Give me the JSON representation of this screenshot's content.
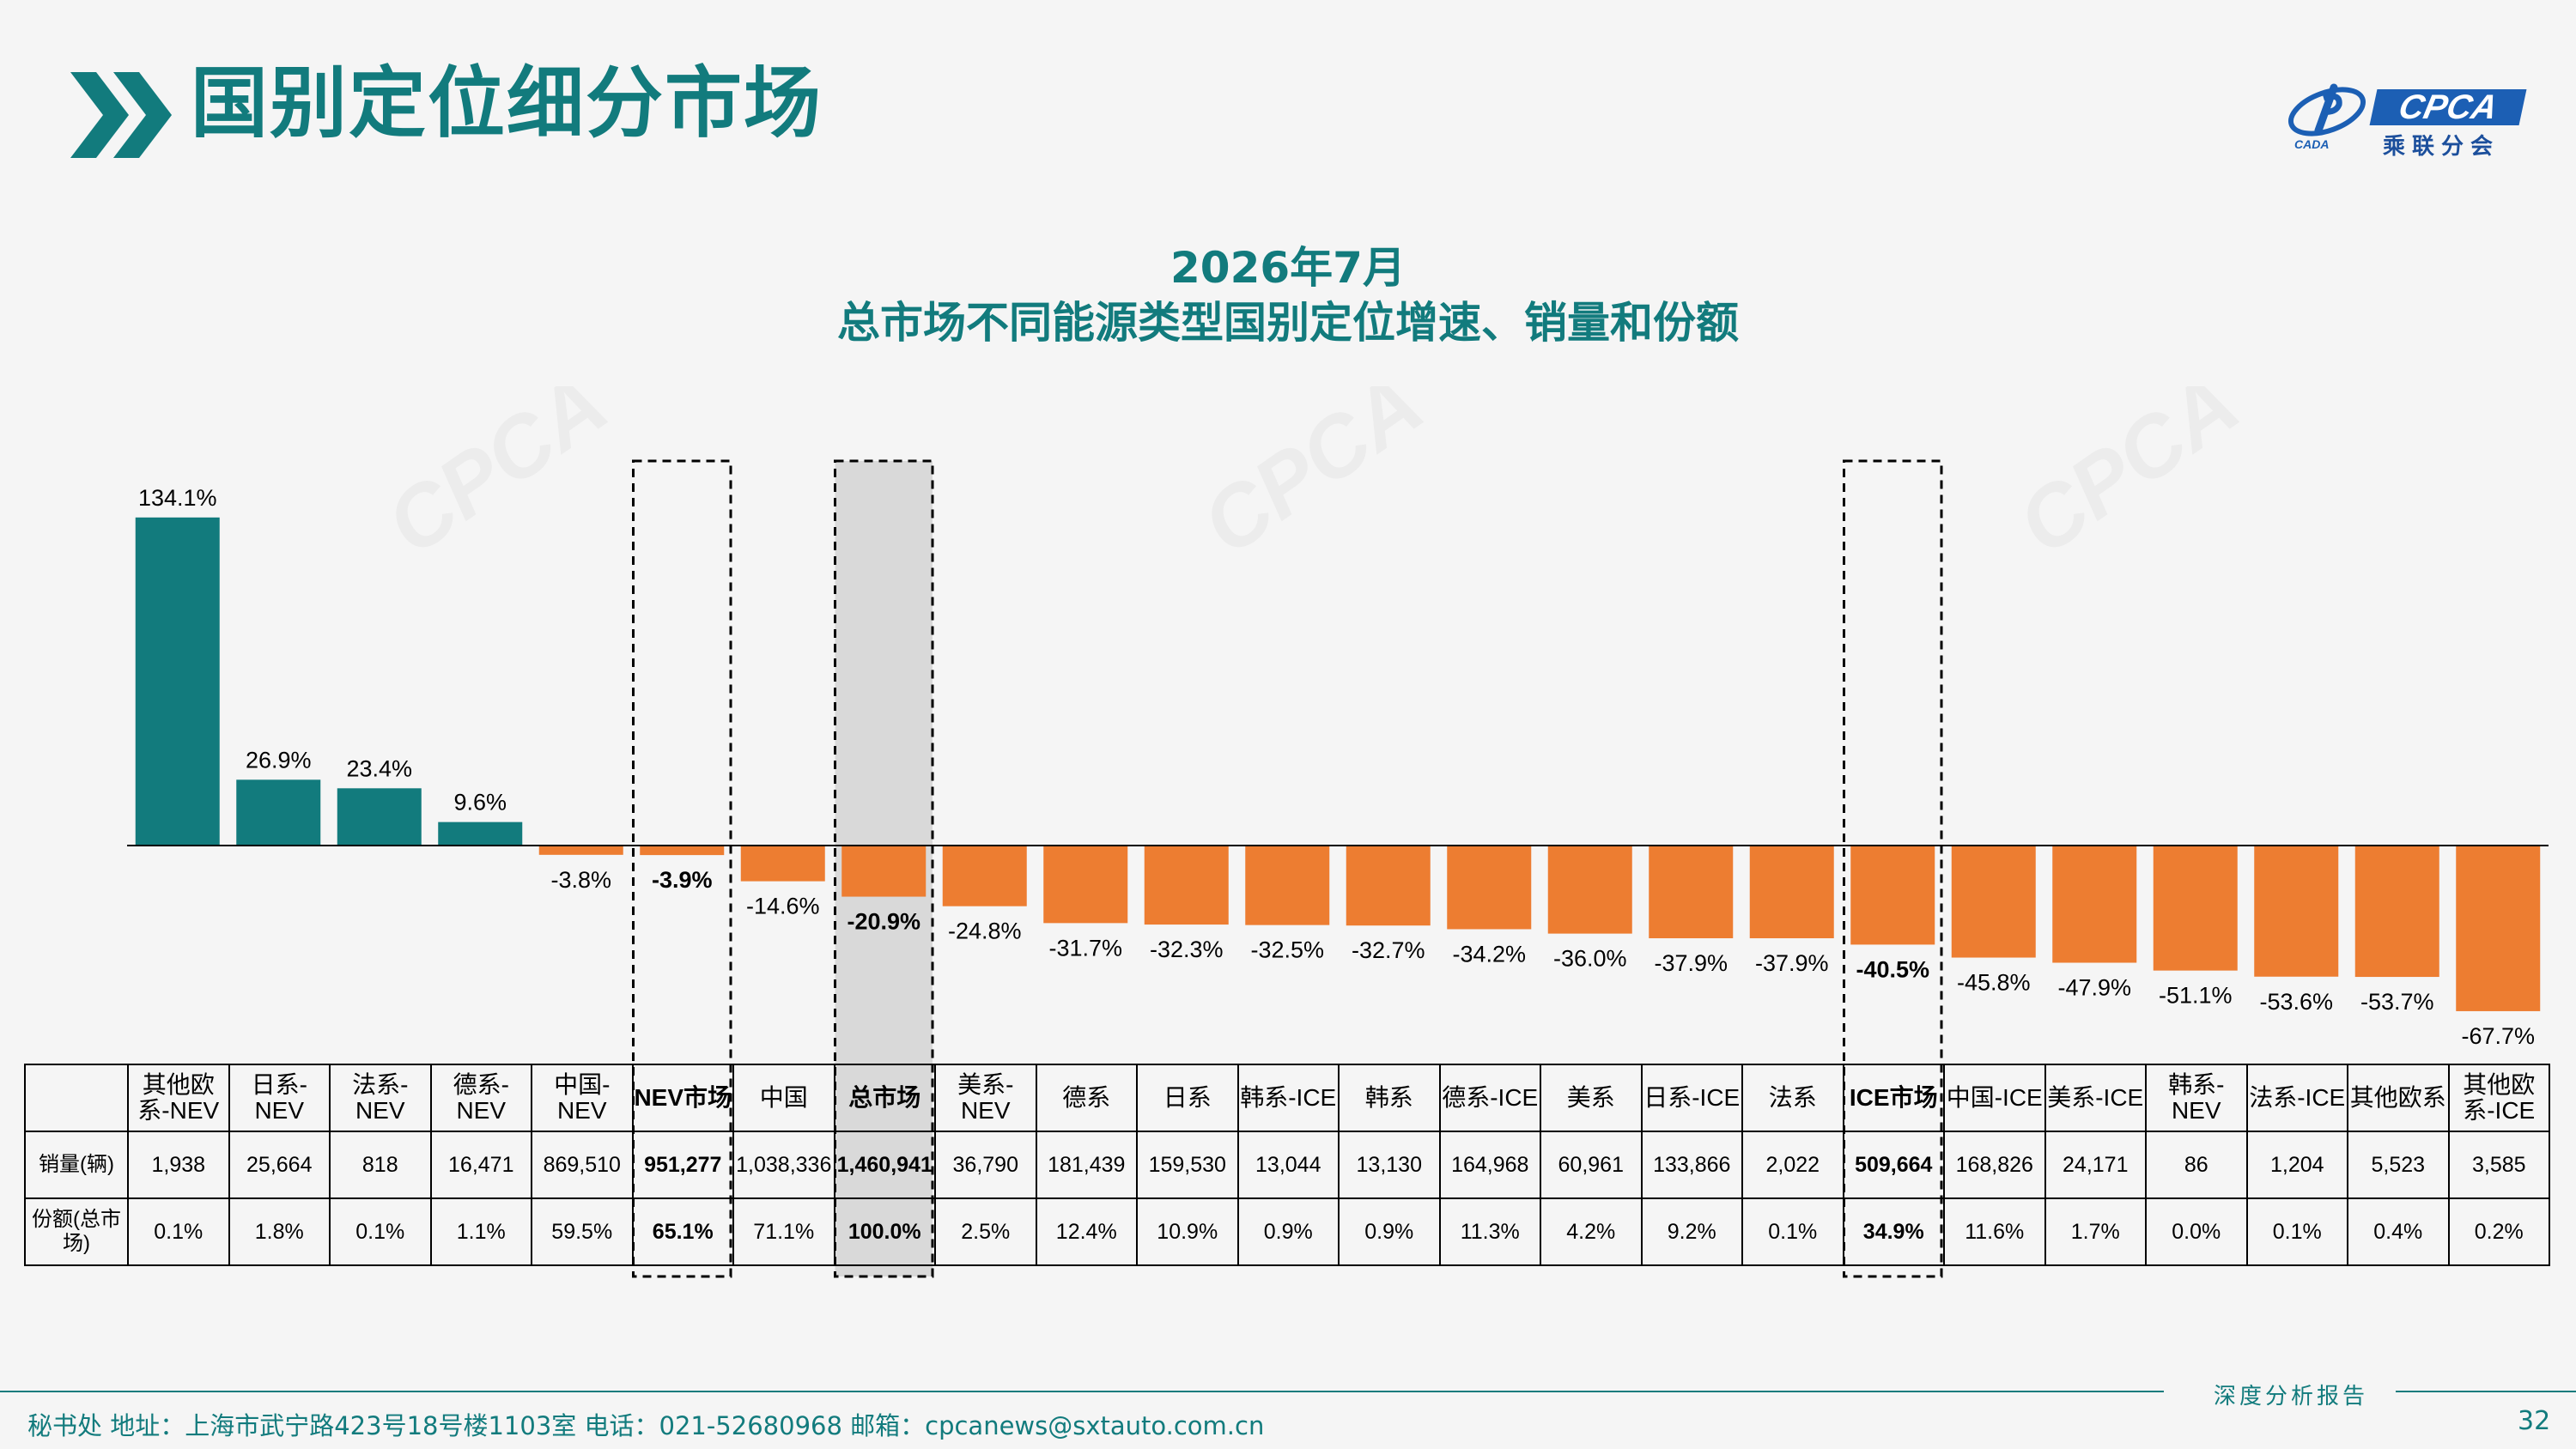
{
  "header": {
    "title": "国别定位细分市场"
  },
  "logo": {
    "text": "CPCA",
    "subtitle_cn": "乘联分会",
    "small_text": "CADA"
  },
  "chart_data": {
    "type": "bar",
    "title": "2026年7月",
    "subtitle": "总市场不同能源类型国别定位增速、销量和份额",
    "categories": [
      "其他欧系-NEV",
      "日系-NEV",
      "法系-NEV",
      "德系-NEV",
      "中国-NEV",
      "NEV市场",
      "中国",
      "总市场",
      "美系-NEV",
      "德系",
      "日系",
      "韩系-ICE",
      "韩系",
      "德系-ICE",
      "美系",
      "日系-ICE",
      "法系",
      "ICE市场",
      "中国-ICE",
      "美系-ICE",
      "韩系-NEV",
      "法系-ICE",
      "其他欧系",
      "其他欧系-ICE"
    ],
    "values": [
      134.1,
      26.9,
      23.4,
      9.6,
      -3.8,
      -3.9,
      -14.6,
      -20.9,
      -24.8,
      -31.7,
      -32.3,
      -32.5,
      -32.7,
      -34.2,
      -36.0,
      -37.9,
      -37.9,
      -40.5,
      -45.8,
      -47.9,
      -51.1,
      -53.6,
      -53.7,
      -67.7
    ],
    "value_labels": [
      "134.1%",
      "26.9%",
      "23.4%",
      "9.6%",
      "-3.8%",
      "-3.9%",
      "-14.6%",
      "-20.9%",
      "-24.8%",
      "-31.7%",
      "-32.3%",
      "-32.5%",
      "-32.7%",
      "-34.2%",
      "-36.0%",
      "-37.9%",
      "-37.9%",
      "-40.5%",
      "-45.8%",
      "-47.9%",
      "-51.1%",
      "-53.6%",
      "-53.7%",
      "-67.7%"
    ],
    "highlight": [
      false,
      false,
      false,
      false,
      false,
      true,
      false,
      true,
      false,
      false,
      false,
      false,
      false,
      false,
      false,
      false,
      false,
      true,
      false,
      false,
      false,
      false,
      false,
      false
    ],
    "shaded": [
      false,
      false,
      false,
      false,
      false,
      false,
      false,
      true,
      false,
      false,
      false,
      false,
      false,
      false,
      false,
      false,
      false,
      false,
      false,
      false,
      false,
      false,
      false,
      false
    ],
    "positive_color": "#127b7d",
    "negative_color": "#ed7d31",
    "grid": false,
    "legend": "none",
    "ylim": [
      -70,
      135
    ]
  },
  "table": {
    "row_label_sales": "销量(辆)",
    "row_label_share": "份额(总市场)",
    "headers": [
      "其他欧系-NEV",
      "日系-NEV",
      "法系-NEV",
      "德系-NEV",
      "中国-NEV",
      "NEV市场",
      "中国",
      "总市场",
      "美系-NEV",
      "德系",
      "日系",
      "韩系-ICE",
      "韩系",
      "德系-ICE",
      "美系",
      "日系-ICE",
      "法系",
      "ICE市场",
      "中国-ICE",
      "美系-ICE",
      "韩系-NEV",
      "法系-ICE",
      "其他欧系",
      "其他欧系-ICE"
    ],
    "sales": [
      "1,938",
      "25,664",
      "818",
      "16,471",
      "869,510",
      "951,277",
      "1,038,336",
      "1,460,941",
      "36,790",
      "181,439",
      "159,530",
      "13,044",
      "13,130",
      "164,968",
      "60,961",
      "133,866",
      "2,022",
      "509,664",
      "168,826",
      "24,171",
      "86",
      "1,204",
      "5,523",
      "3,585"
    ],
    "shares": [
      "0.1%",
      "1.8%",
      "0.1%",
      "1.1%",
      "59.5%",
      "65.1%",
      "71.1%",
      "100.0%",
      "2.5%",
      "12.4%",
      "10.9%",
      "0.9%",
      "0.9%",
      "11.3%",
      "4.2%",
      "9.2%",
      "0.1%",
      "34.9%",
      "11.6%",
      "1.7%",
      "0.0%",
      "0.1%",
      "0.4%",
      "0.2%"
    ]
  },
  "footer": {
    "report_label": "深度分析报告",
    "address": "秘书处  地址：上海市武宁路423号18号楼1103室  电话：021-52680968  邮箱：cpcanews@sxtauto.com.cn",
    "page_number": "32"
  }
}
